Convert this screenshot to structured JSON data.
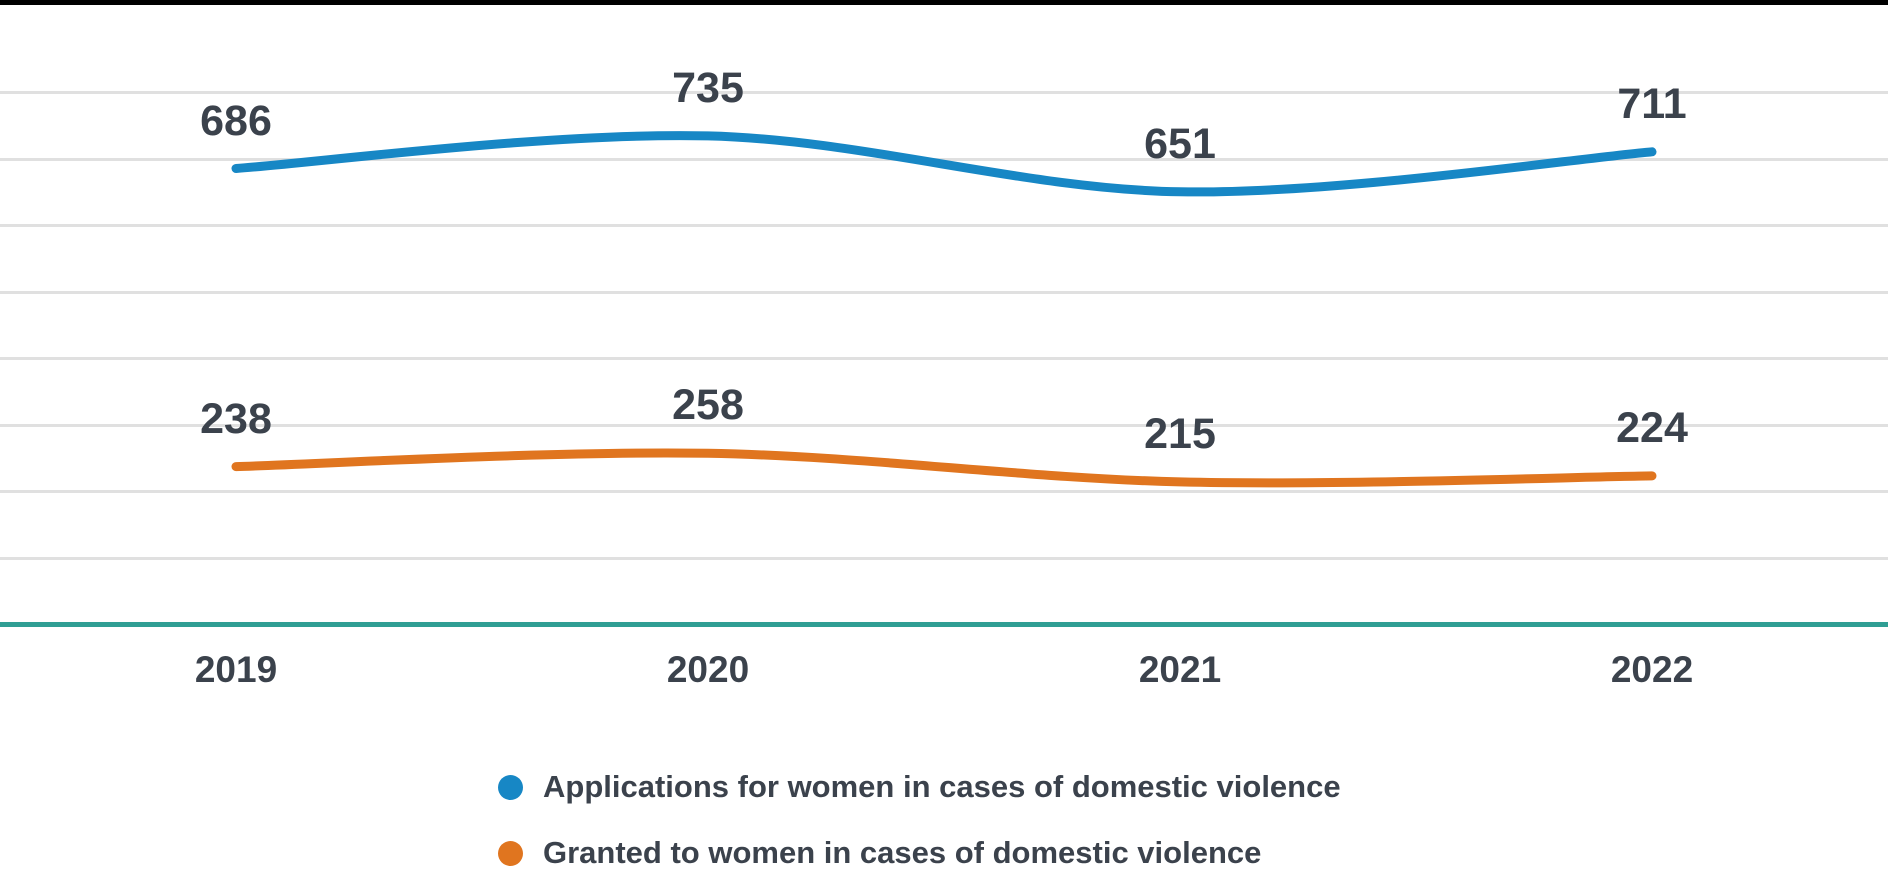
{
  "chart_data": {
    "type": "line",
    "curve": "smooth",
    "categories": [
      "2019",
      "2020",
      "2021",
      "2022"
    ],
    "series": [
      {
        "name": "Applications for women in cases of domestic violence",
        "color": "#1787c5",
        "values": [
          686,
          735,
          651,
          711
        ]
      },
      {
        "name": "Granted to women in cases of domestic violence",
        "color": "#e0751f",
        "values": [
          238,
          258,
          215,
          224
        ]
      }
    ],
    "title": "",
    "xlabel": "",
    "ylabel": "",
    "ylim": [
      0,
      850
    ],
    "y_gridline_values": [
      100,
      200,
      300,
      400,
      500,
      600,
      700,
      800
    ],
    "grid": "horizontal",
    "data_labels_shown": true,
    "legend_position": "bottom",
    "colors": {
      "gridline": "#e0e0e0",
      "axis_line": "#2f9e94",
      "label_text": "#3b424c",
      "top_border": "#000000",
      "background": "#ffffff"
    }
  }
}
